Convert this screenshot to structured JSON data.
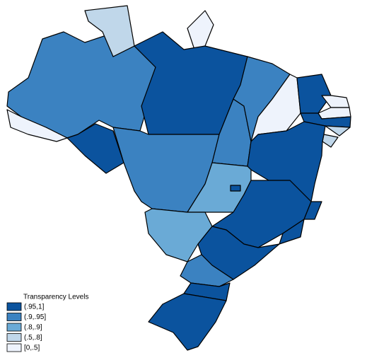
{
  "legend": {
    "title": "Transparency Levels",
    "items": [
      {
        "label": "(.95,1]",
        "color": "#0b539e"
      },
      {
        "label": "(.9,.95]",
        "color": "#3b82c1"
      },
      {
        "label": "(.8,.9]",
        "color": "#6aaad6"
      },
      {
        "label": "(.5,.8]",
        "color": "#c0d7ea"
      },
      {
        "label": "[0,.5]",
        "color": "#eef3fc"
      }
    ]
  }
}
